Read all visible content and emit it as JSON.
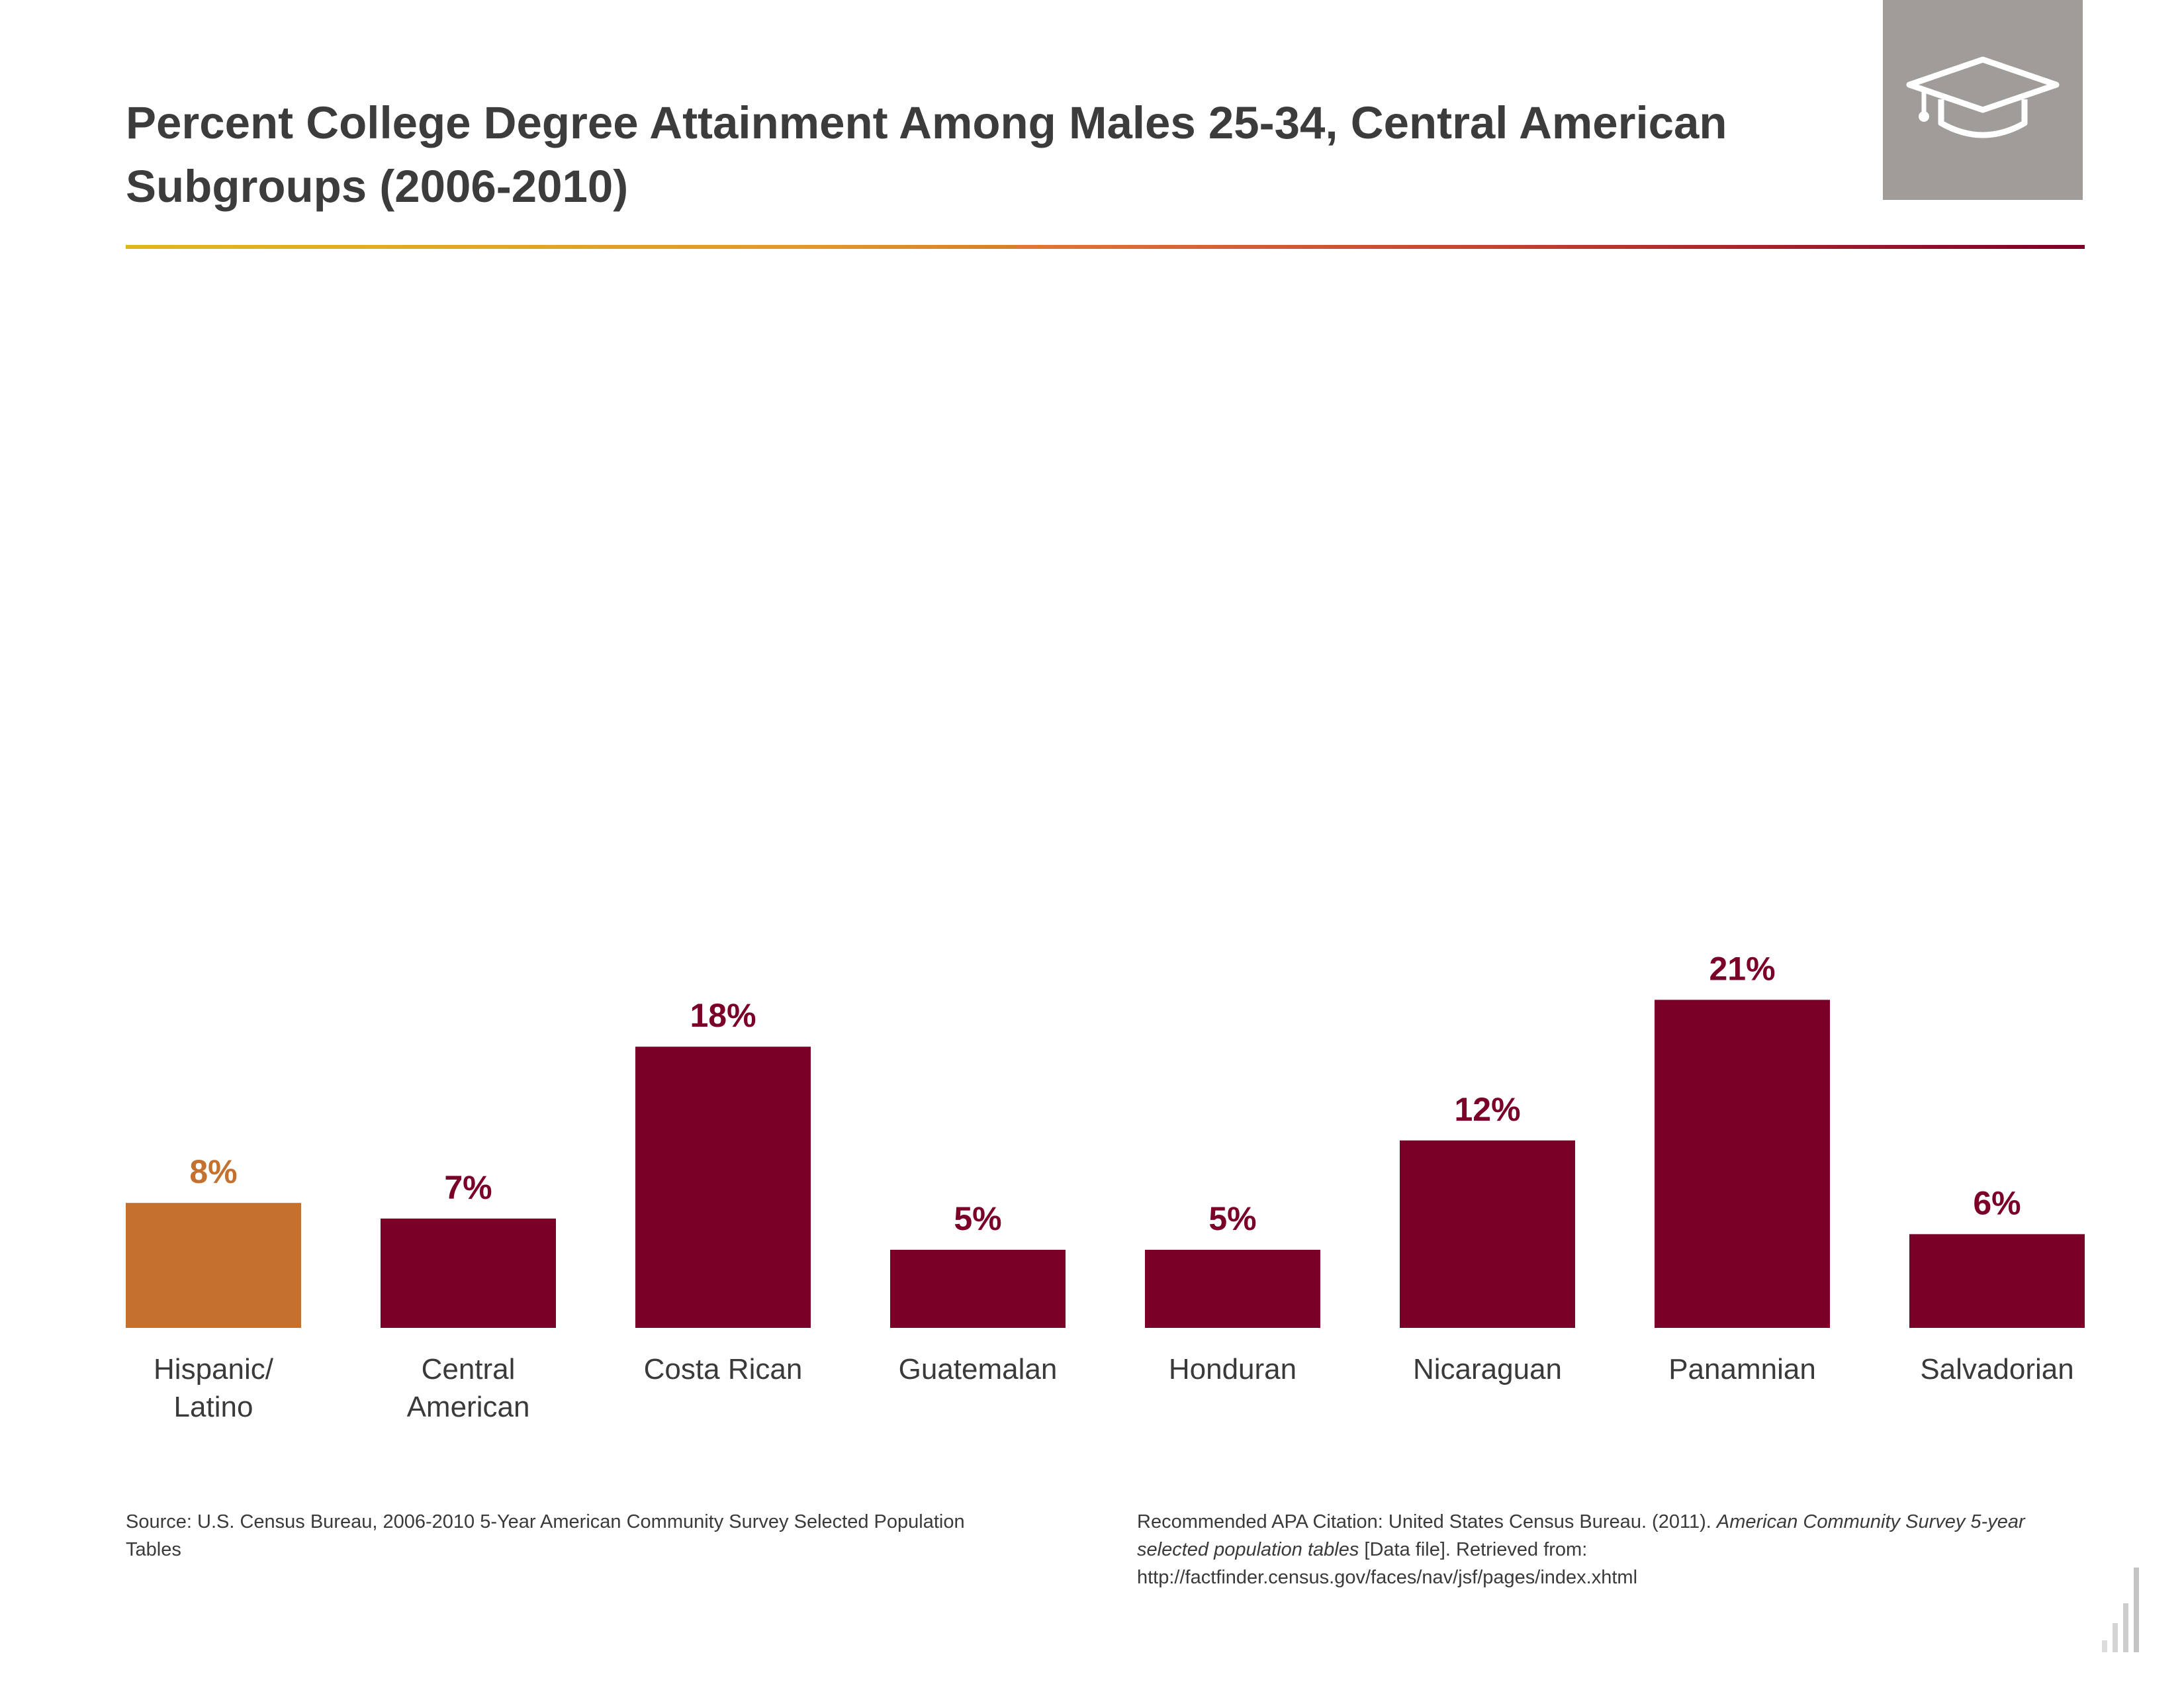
{
  "title": "Percent College Degree Attainment Among Males 25-34, Central American Subgroups (2006-2010)",
  "icon": "graduation-cap-icon",
  "colors": {
    "highlight": "#c4702f",
    "bar": "#7a0028",
    "icon_box": "#9f9c99"
  },
  "chart_data": {
    "type": "bar",
    "categories": [
      [
        "Hispanic/",
        "Latino"
      ],
      [
        "Central",
        "American"
      ],
      [
        "Costa Rican"
      ],
      [
        "Guatemalan"
      ],
      [
        "Honduran"
      ],
      [
        "Nicaraguan"
      ],
      [
        "Panamnian"
      ],
      [
        "Salvadorian"
      ]
    ],
    "values": [
      8,
      7,
      18,
      5,
      5,
      12,
      21,
      6
    ],
    "value_labels": [
      "8%",
      "7%",
      "18%",
      "5%",
      "5%",
      "12%",
      "21%",
      "6%"
    ],
    "highlight_index": 0,
    "ylim": [
      0,
      21
    ],
    "grid": false
  },
  "source": "Source: U.S. Census Bureau, 2006-2010 5-Year American Community Survey Selected Population Tables",
  "citation": {
    "prefix": "Recommended APA Citation: United States Census Bureau. (2011). ",
    "italic": "American Community Survey 5-year selected population tables",
    "suffix": " [Data file]. Retrieved from: http://factfinder.census.gov/faces/nav/jsf/pages/index.xhtml"
  }
}
